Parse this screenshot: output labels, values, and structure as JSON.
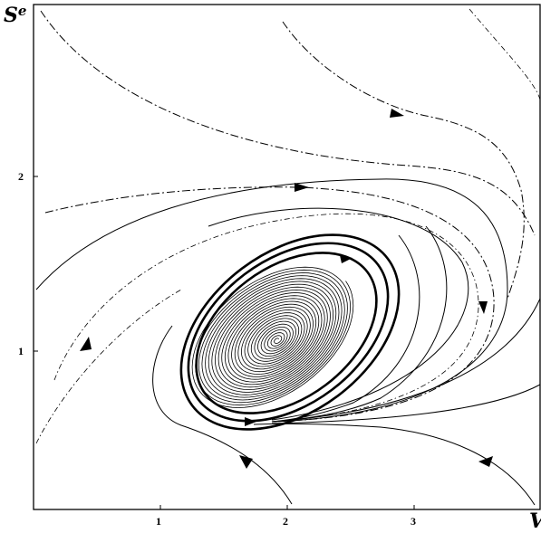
{
  "figure": {
    "x_axis_label": "V",
    "y_axis_label_main": "S",
    "y_axis_label_sup": "e",
    "x_ticks": [
      "1",
      "2",
      "3"
    ],
    "y_ticks": [
      "1",
      "2"
    ]
  }
}
